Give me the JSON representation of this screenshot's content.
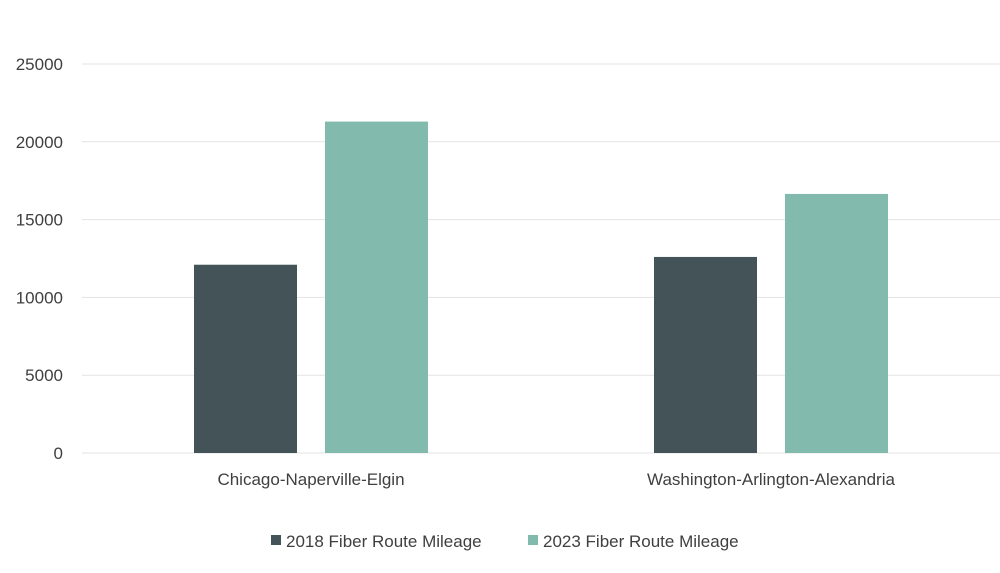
{
  "chart_data": {
    "type": "bar",
    "categories": [
      "Chicago-Naperville-Elgin",
      "Washington-Arlington-Alexandria"
    ],
    "series": [
      {
        "name": "2018 Fiber Route Mileage",
        "values": [
          12100,
          12600
        ],
        "color": "#435357"
      },
      {
        "name": "2023 Fiber Route Mileage",
        "values": [
          21300,
          16650
        ],
        "color": "#82bbad"
      }
    ],
    "yticks": [
      "0",
      "5000",
      "10000",
      "15000",
      "20000",
      "25000"
    ],
    "ylim": [
      0,
      25000
    ],
    "grid": true,
    "legend": "bottom-center",
    "title": "",
    "xlabel": "",
    "ylabel": ""
  }
}
